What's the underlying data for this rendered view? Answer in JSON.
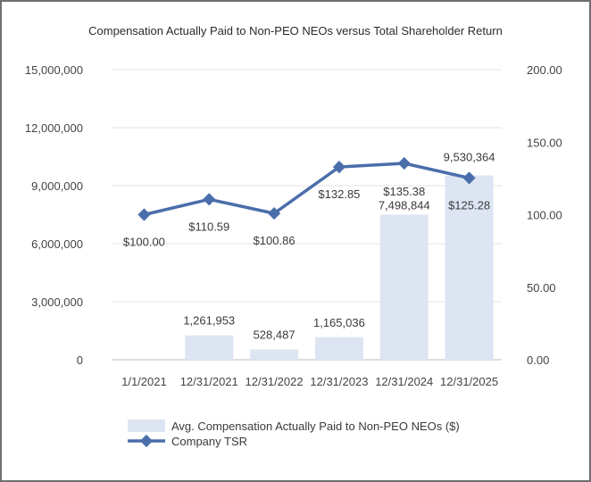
{
  "chart_data": {
    "type": "bar",
    "title": "Compensation Actually Paid to Non-PEO NEOs versus Total Shareholder Return",
    "categories": [
      "1/1/2021",
      "12/31/2021",
      "12/31/2022",
      "12/31/2023",
      "12/31/2024",
      "12/31/2025"
    ],
    "series": [
      {
        "name": "Avg. Compensation Actually Paid to Non-PEO NEOs ($)",
        "type": "bar",
        "axis": "left",
        "values": [
          0,
          1261953,
          528487,
          1165036,
          7498844,
          9530364
        ],
        "labels": [
          "",
          "1,261,953",
          "528,487",
          "1,165,036",
          "7,498,844",
          "9,530,364"
        ],
        "color": "#dde5f3"
      },
      {
        "name": "Company TSR",
        "type": "line",
        "axis": "right",
        "values": [
          100.0,
          110.59,
          100.86,
          132.85,
          135.38,
          125.28
        ],
        "labels": [
          "$100.00",
          "$110.59",
          "$100.86",
          "$132.85",
          "$135.38",
          "$125.28"
        ],
        "color": "#4a6eaa"
      }
    ],
    "y_left": {
      "ylim": [
        0,
        15000000
      ],
      "ticks": [
        0,
        3000000,
        6000000,
        9000000,
        12000000,
        15000000
      ],
      "tick_labels": [
        "0",
        "3,000,000",
        "6,000,000",
        "9,000,000",
        "12,000,000",
        "15,000,000"
      ]
    },
    "y_right": {
      "ylim": [
        0,
        200
      ],
      "ticks": [
        0,
        50,
        100,
        150,
        200
      ],
      "tick_labels": [
        "0.00",
        "50.00",
        "100.00",
        "150.00",
        "200.00"
      ]
    },
    "grid": true,
    "legend_position": "bottom"
  }
}
